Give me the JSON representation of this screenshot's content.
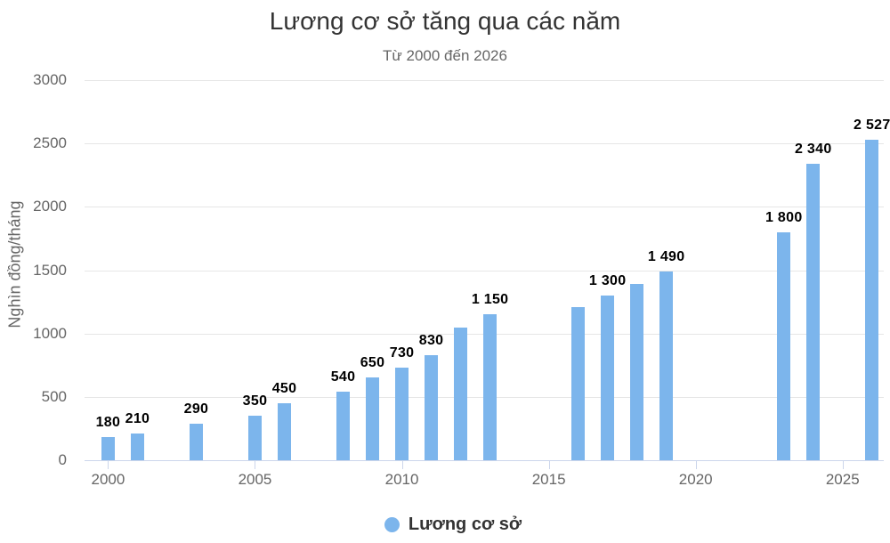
{
  "chart_data": {
    "type": "bar",
    "title": "Lương cơ sở tăng qua các năm",
    "subtitle": "Từ 2000 đến 2026",
    "ylabel": "Nghìn đồng/tháng",
    "xlabel": "",
    "series_name": "Lương cơ sở",
    "bar_color": "#7cb5ec",
    "grid": true,
    "legend_position": "bottom-center",
    "xlim": [
      1999.2,
      2026.4
    ],
    "ylim": [
      0,
      3000
    ],
    "yticks": [
      {
        "value": 0,
        "label": "0"
      },
      {
        "value": 500,
        "label": "500"
      },
      {
        "value": 1000,
        "label": "1000"
      },
      {
        "value": 1500,
        "label": "1500"
      },
      {
        "value": 2000,
        "label": "2000"
      },
      {
        "value": 2500,
        "label": "2500"
      },
      {
        "value": 3000,
        "label": "3000"
      }
    ],
    "xticks": [
      {
        "value": 2000,
        "label": "2000"
      },
      {
        "value": 2005,
        "label": "2005"
      },
      {
        "value": 2010,
        "label": "2010"
      },
      {
        "value": 2015,
        "label": "2015"
      },
      {
        "value": 2020,
        "label": "2020"
      },
      {
        "value": 2025,
        "label": "2025"
      }
    ],
    "points": [
      {
        "x": 2000,
        "y": 180,
        "label": "180"
      },
      {
        "x": 2001,
        "y": 210,
        "label": "210"
      },
      {
        "x": 2003,
        "y": 290,
        "label": "290"
      },
      {
        "x": 2005,
        "y": 350,
        "label": "350"
      },
      {
        "x": 2006,
        "y": 450,
        "label": "450"
      },
      {
        "x": 2008,
        "y": 540,
        "label": "540"
      },
      {
        "x": 2009,
        "y": 650,
        "label": "650"
      },
      {
        "x": 2010,
        "y": 730,
        "label": "730"
      },
      {
        "x": 2011,
        "y": 830,
        "label": "830"
      },
      {
        "x": 2012,
        "y": 1050,
        "label": ""
      },
      {
        "x": 2013,
        "y": 1150,
        "label": "1 150"
      },
      {
        "x": 2016,
        "y": 1210,
        "label": ""
      },
      {
        "x": 2017,
        "y": 1300,
        "label": "1 300"
      },
      {
        "x": 2018,
        "y": 1390,
        "label": ""
      },
      {
        "x": 2019,
        "y": 1490,
        "label": "1 490"
      },
      {
        "x": 2023,
        "y": 1800,
        "label": "1 800"
      },
      {
        "x": 2024,
        "y": 2340,
        "label": "2 340"
      },
      {
        "x": 2026,
        "y": 2527,
        "label": "2 527"
      }
    ]
  }
}
